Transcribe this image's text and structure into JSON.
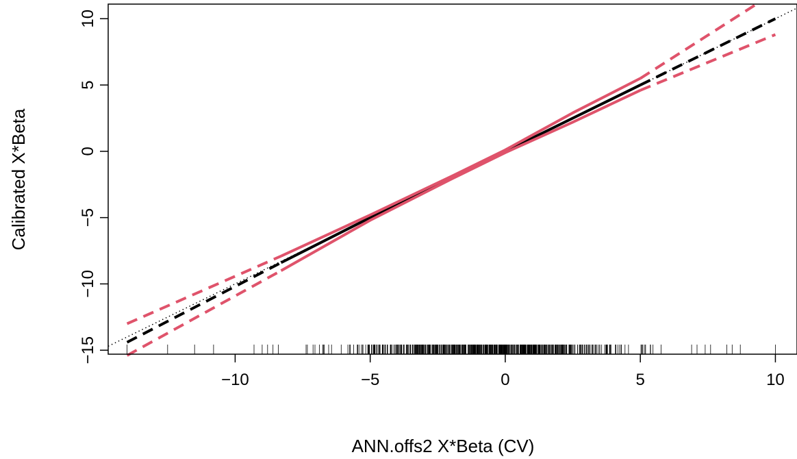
{
  "chart_data": {
    "type": "line",
    "title": "",
    "xlabel": "ANN.offs2 X*Beta (CV)",
    "ylabel": "Calibrated X*Beta",
    "xlim": [
      -14.7,
      10.8
    ],
    "ylim": [
      -15.3,
      11.1
    ],
    "x_ticks": [
      -10,
      -5,
      0,
      5,
      10
    ],
    "y_ticks": [
      -15,
      -10,
      -5,
      0,
      5,
      10
    ],
    "x_tick_labels": [
      "−10",
      "−5",
      "0",
      "5",
      "10"
    ],
    "y_tick_labels": [
      "−15",
      "−10",
      "−5",
      "0",
      "5",
      "10"
    ],
    "grid": false,
    "legend": "none",
    "colors": {
      "estimate": "#000000",
      "band": "#DF536B",
      "reference": "#000000"
    },
    "series": [
      {
        "style": "dotted-reference",
        "color": "#000000",
        "points": [
          [
            -14.7,
            -14.7
          ],
          [
            10.8,
            10.8
          ]
        ]
      },
      {
        "style": "solid",
        "color": "#000000",
        "points": [
          [
            -8.3,
            -8.4
          ],
          [
            -5,
            -5.0
          ],
          [
            0,
            0.0
          ],
          [
            5,
            5.0
          ]
        ]
      },
      {
        "style": "dashed",
        "color": "#000000",
        "points": [
          [
            -14,
            -14.4
          ],
          [
            -8.3,
            -8.4
          ]
        ]
      },
      {
        "style": "dashed",
        "color": "#000000",
        "points": [
          [
            5,
            5.0
          ],
          [
            10,
            10.0
          ]
        ]
      },
      {
        "style": "solid",
        "color": "#DF536B",
        "points": [
          [
            -8.3,
            -7.9
          ],
          [
            -5,
            -4.8
          ],
          [
            -2,
            -1.9
          ],
          [
            0,
            0.1
          ],
          [
            2.5,
            2.9
          ],
          [
            5,
            5.5
          ]
        ]
      },
      {
        "style": "solid",
        "color": "#DF536B",
        "points": [
          [
            -8.3,
            -9.0
          ],
          [
            -5,
            -5.2
          ],
          [
            -2,
            -2.1
          ],
          [
            0,
            -0.1
          ],
          [
            2.5,
            2.2
          ],
          [
            5,
            4.6
          ]
        ]
      },
      {
        "style": "dashed",
        "color": "#DF536B",
        "points": [
          [
            -14,
            -13.0
          ],
          [
            -8.3,
            -7.9
          ]
        ]
      },
      {
        "style": "dashed",
        "color": "#DF536B",
        "points": [
          [
            -14,
            -15.4
          ],
          [
            -8.3,
            -9.0
          ]
        ]
      },
      {
        "style": "dashed",
        "color": "#DF536B",
        "points": [
          [
            5,
            5.5
          ],
          [
            9.3,
            11.1
          ]
        ]
      },
      {
        "style": "dashed",
        "color": "#DF536B",
        "points": [
          [
            5,
            4.6
          ],
          [
            10,
            8.8
          ]
        ]
      }
    ],
    "rug": {
      "sparse": [
        -14,
        -12.5,
        -11.5,
        -10.8,
        -9.3,
        -9.0,
        -8.8,
        -8.6,
        -8.4,
        6.9,
        7.1,
        7.4,
        7.6,
        8.2,
        8.4,
        8.7,
        10.0
      ],
      "dense_start": -8.4,
      "dense_end": 6.8,
      "dense_count": 620
    }
  }
}
